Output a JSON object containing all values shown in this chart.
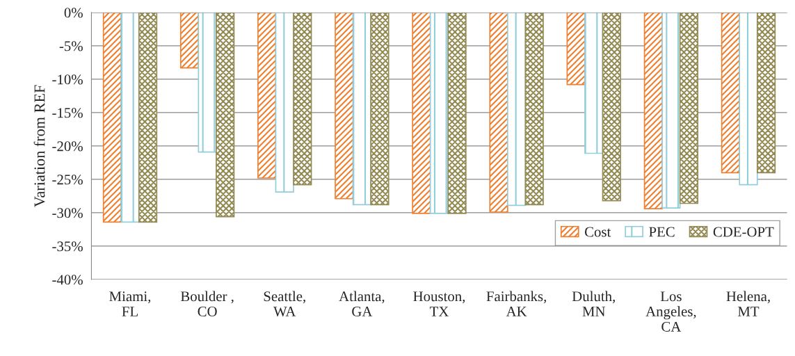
{
  "chart_data": {
    "type": "bar",
    "ylabel": "Variation from REF",
    "categories": [
      "Miami,\nFL",
      "Boulder ,\nCO",
      "Seattle,\nWA",
      "Atlanta,\nGA",
      "Houston,\nTX",
      "Fairbanks,\nAK",
      "Duluth,\nMN",
      "Los\nAngeles,\nCA",
      "Helena,\nMT"
    ],
    "series": [
      {
        "name": "Cost",
        "color": "#f07f2f",
        "values": [
          -31.4,
          -8.3,
          -24.8,
          -27.9,
          -30.1,
          -29.9,
          -10.8,
          -29.4,
          -24.0
        ]
      },
      {
        "name": "PEC",
        "color": "#92cddc",
        "values": [
          -31.4,
          -20.9,
          -26.9,
          -28.8,
          -30.1,
          -28.9,
          -21.1,
          -29.3,
          -25.8
        ]
      },
      {
        "name": "CDE-OPT",
        "color": "#948a54",
        "values": [
          -31.4,
          -30.6,
          -25.8,
          -28.8,
          -30.1,
          -28.8,
          -28.2,
          -28.6,
          -24.0
        ]
      }
    ],
    "ylim": [
      -40,
      0
    ],
    "yticks": [
      {
        "value": -40,
        "label": "-40%"
      },
      {
        "value": -35,
        "label": "-35%"
      },
      {
        "value": -30,
        "label": "-30%"
      },
      {
        "value": -25,
        "label": "-25%"
      },
      {
        "value": -20,
        "label": "-20%"
      },
      {
        "value": -15,
        "label": "-15%"
      },
      {
        "value": -10,
        "label": "-10%"
      },
      {
        "value": -5,
        "label": "-5%"
      },
      {
        "value": 0,
        "label": "0%"
      }
    ],
    "grid": "y",
    "legend": "bottom right"
  }
}
